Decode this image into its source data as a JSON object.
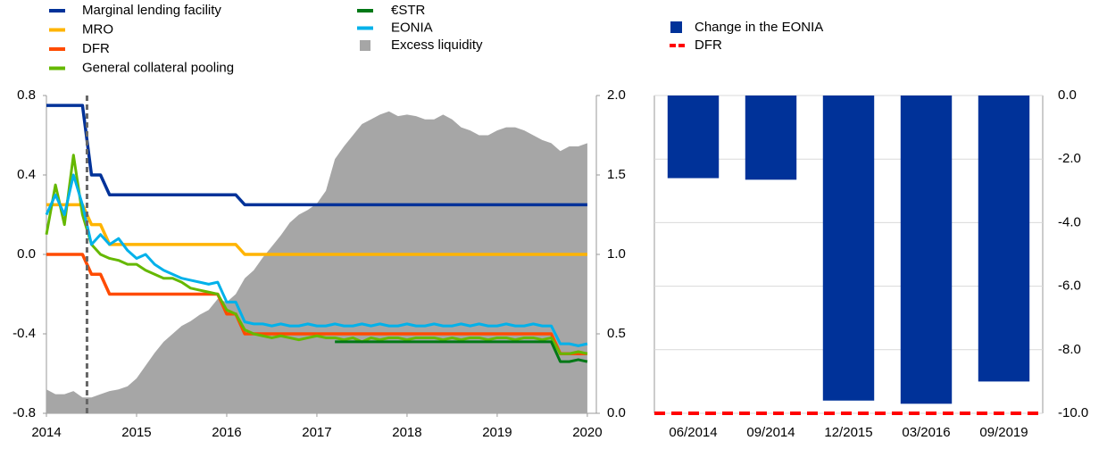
{
  "chart_data": [
    {
      "type": "line",
      "x": [
        2014,
        2014.1,
        2014.2,
        2014.3,
        2014.4,
        2014.5,
        2014.6,
        2014.7,
        2014.8,
        2014.9,
        2015,
        2015.1,
        2015.2,
        2015.3,
        2015.4,
        2015.5,
        2015.6,
        2015.7,
        2015.8,
        2015.9,
        2016,
        2016.1,
        2016.2,
        2016.3,
        2016.4,
        2016.5,
        2016.6,
        2016.7,
        2016.8,
        2016.9,
        2017,
        2017.1,
        2017.2,
        2017.3,
        2017.4,
        2017.5,
        2017.6,
        2017.7,
        2017.8,
        2017.9,
        2018,
        2018.1,
        2018.2,
        2018.3,
        2018.4,
        2018.5,
        2018.6,
        2018.7,
        2018.8,
        2018.9,
        2019,
        2019.1,
        2019.2,
        2019.3,
        2019.4,
        2019.5,
        2019.6,
        2019.7,
        2019.8,
        2019.9,
        2020
      ],
      "xlim": [
        2014,
        2020.1
      ],
      "xticks": [
        2014,
        2015,
        2016,
        2017,
        2018,
        2019,
        2020
      ],
      "ylim": [
        -0.8,
        0.8
      ],
      "yticks": [
        -0.8,
        -0.4,
        {
          "value": 0,
          "label": "0.0"
        },
        0.4,
        0.8
      ],
      "y2lim": [
        0,
        2
      ],
      "y2ticks": [
        {
          "value": 0,
          "label": "0.0"
        },
        0.5,
        {
          "value": 1,
          "label": "1.0"
        },
        1.5,
        {
          "value": 2,
          "label": "2.0"
        }
      ],
      "reference_line_x": 2014.45,
      "series": [
        {
          "name": "Marginal lending facility",
          "color": "#003299",
          "width": 3.5,
          "values": [
            0.75,
            0.75,
            0.75,
            0.75,
            0.75,
            0.4,
            0.4,
            0.3,
            0.3,
            0.3,
            0.3,
            0.3,
            0.3,
            0.3,
            0.3,
            0.3,
            0.3,
            0.3,
            0.3,
            0.3,
            0.3,
            0.3,
            0.25,
            0.25,
            0.25,
            0.25,
            0.25,
            0.25,
            0.25,
            0.25,
            0.25,
            0.25,
            0.25,
            0.25,
            0.25,
            0.25,
            0.25,
            0.25,
            0.25,
            0.25,
            0.25,
            0.25,
            0.25,
            0.25,
            0.25,
            0.25,
            0.25,
            0.25,
            0.25,
            0.25,
            0.25,
            0.25,
            0.25,
            0.25,
            0.25,
            0.25,
            0.25,
            0.25,
            0.25,
            0.25,
            0.25
          ]
        },
        {
          "name": "MRO",
          "color": "#ffb400",
          "width": 3.5,
          "values": [
            0.25,
            0.25,
            0.25,
            0.25,
            0.25,
            0.15,
            0.15,
            0.05,
            0.05,
            0.05,
            0.05,
            0.05,
            0.05,
            0.05,
            0.05,
            0.05,
            0.05,
            0.05,
            0.05,
            0.05,
            0.05,
            0.05,
            0,
            0,
            0,
            0,
            0,
            0,
            0,
            0,
            0,
            0,
            0,
            0,
            0,
            0,
            0,
            0,
            0,
            0,
            0,
            0,
            0,
            0,
            0,
            0,
            0,
            0,
            0,
            0,
            0,
            0,
            0,
            0,
            0,
            0,
            0,
            0,
            0,
            0,
            0
          ]
        },
        {
          "name": "DFR",
          "color": "#ff4b00",
          "width": 3.5,
          "values": [
            0,
            0,
            0,
            0,
            0,
            -0.1,
            -0.1,
            -0.2,
            -0.2,
            -0.2,
            -0.2,
            -0.2,
            -0.2,
            -0.2,
            -0.2,
            -0.2,
            -0.2,
            -0.2,
            -0.2,
            -0.2,
            -0.3,
            -0.3,
            -0.4,
            -0.4,
            -0.4,
            -0.4,
            -0.4,
            -0.4,
            -0.4,
            -0.4,
            -0.4,
            -0.4,
            -0.4,
            -0.4,
            -0.4,
            -0.4,
            -0.4,
            -0.4,
            -0.4,
            -0.4,
            -0.4,
            -0.4,
            -0.4,
            -0.4,
            -0.4,
            -0.4,
            -0.4,
            -0.4,
            -0.4,
            -0.4,
            -0.4,
            -0.4,
            -0.4,
            -0.4,
            -0.4,
            -0.4,
            -0.4,
            -0.5,
            -0.5,
            -0.5,
            -0.5
          ]
        },
        {
          "name": "General collateral pooling",
          "color": "#65b800",
          "width": 3,
          "values": [
            0.1,
            0.35,
            0.15,
            0.5,
            0.2,
            0.05,
            0,
            -0.02,
            -0.03,
            -0.05,
            -0.05,
            -0.08,
            -0.1,
            -0.12,
            -0.12,
            -0.14,
            -0.17,
            -0.18,
            -0.19,
            -0.2,
            -0.28,
            -0.3,
            -0.38,
            -0.4,
            -0.41,
            -0.42,
            -0.41,
            -0.42,
            -0.43,
            -0.42,
            -0.41,
            -0.42,
            -0.42,
            -0.43,
            -0.42,
            -0.44,
            -0.42,
            -0.43,
            -0.42,
            -0.42,
            -0.43,
            -0.42,
            -0.42,
            -0.42,
            -0.43,
            -0.42,
            -0.43,
            -0.42,
            -0.42,
            -0.43,
            -0.42,
            -0.42,
            -0.43,
            -0.42,
            -0.42,
            -0.43,
            -0.42,
            -0.5,
            -0.5,
            -0.49,
            -0.5
          ]
        },
        {
          "name": "€STR",
          "color": "#007816",
          "width": 3,
          "values": [
            null,
            null,
            null,
            null,
            null,
            null,
            null,
            null,
            null,
            null,
            null,
            null,
            null,
            null,
            null,
            null,
            null,
            null,
            null,
            null,
            null,
            null,
            null,
            null,
            null,
            null,
            null,
            null,
            null,
            null,
            null,
            null,
            -0.44,
            -0.44,
            -0.44,
            -0.44,
            -0.44,
            -0.44,
            -0.44,
            -0.44,
            -0.44,
            -0.44,
            -0.44,
            -0.44,
            -0.44,
            -0.44,
            -0.44,
            -0.44,
            -0.44,
            -0.44,
            -0.44,
            -0.44,
            -0.44,
            -0.44,
            -0.44,
            -0.44,
            -0.44,
            -0.54,
            -0.54,
            -0.53,
            -0.54
          ]
        },
        {
          "name": "EONIA",
          "color": "#00b1ea",
          "width": 3,
          "values": [
            0.2,
            0.3,
            0.2,
            0.4,
            0.25,
            0.05,
            0.1,
            0.05,
            0.08,
            0.02,
            -0.02,
            0,
            -0.05,
            -0.08,
            -0.1,
            -0.12,
            -0.13,
            -0.14,
            -0.15,
            -0.14,
            -0.24,
            -0.24,
            -0.34,
            -0.35,
            -0.35,
            -0.36,
            -0.35,
            -0.36,
            -0.36,
            -0.35,
            -0.36,
            -0.36,
            -0.35,
            -0.36,
            -0.36,
            -0.35,
            -0.36,
            -0.35,
            -0.36,
            -0.36,
            -0.35,
            -0.36,
            -0.36,
            -0.35,
            -0.36,
            -0.36,
            -0.35,
            -0.36,
            -0.35,
            -0.36,
            -0.36,
            -0.35,
            -0.36,
            -0.36,
            -0.35,
            -0.36,
            -0.36,
            -0.45,
            -0.45,
            -0.46,
            -0.45
          ]
        },
        {
          "name": "Excess liquidity",
          "color": "#a6a6a6",
          "axis": "y2",
          "kind": "area",
          "values": [
            0.15,
            0.12,
            0.12,
            0.14,
            0.1,
            0.1,
            0.12,
            0.14,
            0.15,
            0.17,
            0.22,
            0.3,
            0.38,
            0.45,
            0.5,
            0.55,
            0.58,
            0.62,
            0.65,
            0.72,
            0.7,
            0.75,
            0.85,
            0.9,
            0.98,
            1.05,
            1.12,
            1.2,
            1.25,
            1.28,
            1.32,
            1.4,
            1.6,
            1.68,
            1.75,
            1.82,
            1.85,
            1.88,
            1.9,
            1.87,
            1.88,
            1.87,
            1.85,
            1.85,
            1.88,
            1.85,
            1.8,
            1.78,
            1.75,
            1.75,
            1.78,
            1.8,
            1.8,
            1.78,
            1.75,
            1.72,
            1.7,
            1.65,
            1.68,
            1.68,
            1.7
          ]
        }
      ]
    },
    {
      "type": "bar",
      "categories": [
        "06/2014",
        "09/2014",
        "12/2015",
        "03/2016",
        "09/2019"
      ],
      "ylim": [
        -10,
        0
      ],
      "yticks": [
        {
          "value": -10,
          "label": "-10.0"
        },
        {
          "value": -8,
          "label": "-8.0"
        },
        {
          "value": -6,
          "label": "-6.0"
        },
        {
          "value": -4,
          "label": "-4.0"
        },
        {
          "value": -2,
          "label": "-2.0"
        },
        {
          "value": 0,
          "label": "0.0"
        }
      ],
      "grid": true,
      "series": [
        {
          "name": "Change in the EONIA",
          "color": "#003299",
          "kind": "bar",
          "values": [
            -2.6,
            -2.65,
            -9.6,
            -9.7,
            -9.0
          ]
        },
        {
          "name": "DFR",
          "color": "#ff0000",
          "kind": "line",
          "dashed": true,
          "values": [
            -10,
            -10,
            -10,
            -10,
            -10
          ]
        }
      ]
    }
  ]
}
